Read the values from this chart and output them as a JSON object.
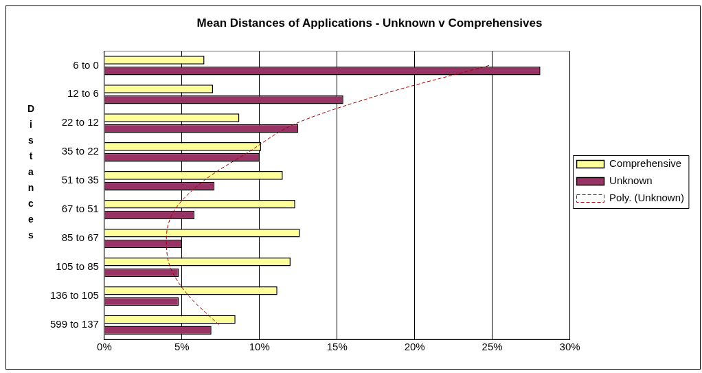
{
  "chart_data": {
    "type": "bar",
    "orientation": "horizontal",
    "title": "Mean Distances of Applications - Unknown v Comprehensives",
    "ylabel": "Distances",
    "categories": [
      "6 to 0",
      "12 to 6",
      "22 to 12",
      "35 to 22",
      "51 to 35",
      "67 to 51",
      "85 to 67",
      "105 to 85",
      "136 to 105",
      "599 to 137"
    ],
    "series": [
      {
        "name": "Comprehensive",
        "color": "#ffff99",
        "values": [
          6.45,
          7.0,
          8.7,
          10.1,
          11.5,
          12.3,
          12.6,
          12.0,
          11.15,
          8.45
        ]
      },
      {
        "name": "Unknown",
        "color": "#993366",
        "values": [
          28.1,
          15.4,
          12.5,
          10.0,
          7.1,
          5.8,
          5.0,
          4.8,
          4.8,
          6.9
        ]
      },
      {
        "name": "Poly. (Unknown)",
        "type": "line",
        "line_style": "dashed",
        "marker": "none",
        "color": "#990000",
        "values": [
          24.8,
          17.9,
          12.4,
          9.3,
          6.4,
          4.55,
          4.0,
          4.25,
          5.45,
          7.4
        ]
      }
    ],
    "xlim": [
      0,
      30
    ],
    "xticks": [
      {
        "value": 0,
        "label": "0%"
      },
      {
        "value": 5,
        "label": "5%"
      },
      {
        "value": 10,
        "label": "10%"
      },
      {
        "value": 15,
        "label": "15%"
      },
      {
        "value": 20,
        "label": "20%"
      },
      {
        "value": 25,
        "label": "25%"
      },
      {
        "value": 30,
        "label": "30%"
      }
    ],
    "grid": "x",
    "legend": "right"
  }
}
